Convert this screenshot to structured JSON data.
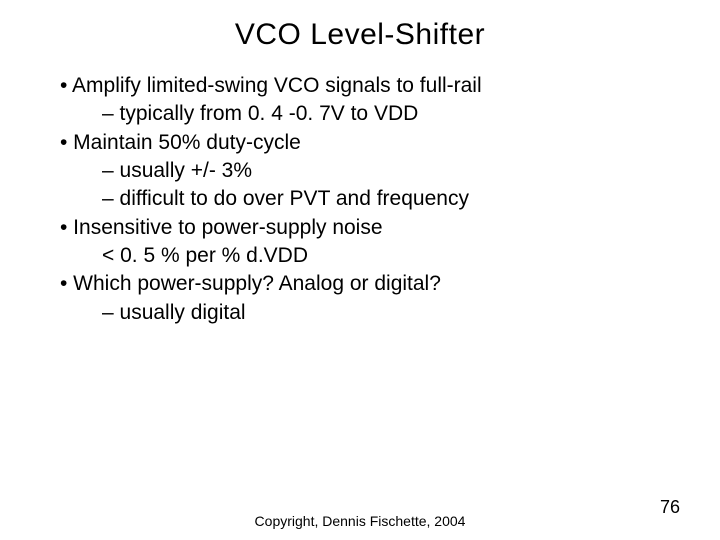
{
  "title": "VCO Level-Shifter",
  "bullets": [
    {
      "level": 1,
      "text": "• Amplify limited-swing VCO signals to full-rail"
    },
    {
      "level": 2,
      "text": "– typically from 0. 4 -0. 7V to VDD"
    },
    {
      "level": 1,
      "text": "• Maintain 50% duty-cycle"
    },
    {
      "level": 2,
      "text": "– usually  +/- 3%"
    },
    {
      "level": 2,
      "text": "– difficult to do over PVT and frequency"
    },
    {
      "level": 1,
      "text": "• Insensitive to power-supply noise"
    },
    {
      "level": 2,
      "text": "< 0. 5 % per % d.VDD"
    },
    {
      "level": 1,
      "text": "• Which power-supply? Analog or digital?"
    },
    {
      "level": 2,
      "text": "– usually digital"
    }
  ],
  "footer": "Copyright, Dennis Fischette, 2004",
  "page_number": "76",
  "colors": {
    "background": "#ffffff",
    "text": "#000000"
  },
  "typography": {
    "title_fontsize": 30,
    "body_fontsize": 21,
    "footer_fontsize": 14,
    "pagenum_fontsize": 18,
    "font_family": "Verdana"
  }
}
